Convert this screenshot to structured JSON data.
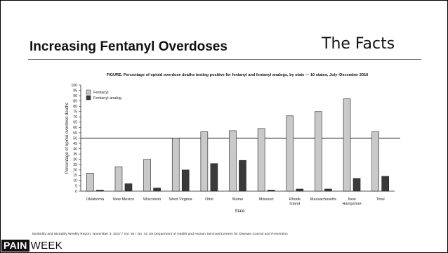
{
  "slide": {
    "title": "Increasing Fentanyl Overdoses",
    "subtitle": "The Facts",
    "caption": "Morbidity and Mortality Weekly Report. November 3, 2017 / Vol. 66 / No. 43 US Department of Health and Human Services/Centers for Disease Control and Prevention",
    "logo_pain": "PAIN",
    "logo_week": "WEEK"
  },
  "colors": {
    "fentanyl": "#c9c9c9",
    "fentanyl_analog": "#3a3a3a",
    "axis": "#222222"
  },
  "chart_data": {
    "type": "bar",
    "title": "FIGURE. Percentage of opioid overdose deaths testing positive for fentanyl and fentanyl analogs, by state — 10 states, July–December 2016",
    "xlabel": "State",
    "ylabel": "Percentage of opioid overdose deaths",
    "ylim": [
      0,
      100
    ],
    "yticks": [
      0,
      5,
      10,
      15,
      20,
      25,
      30,
      35,
      40,
      45,
      50,
      55,
      60,
      65,
      70,
      75,
      80,
      85,
      90,
      95,
      100
    ],
    "reference_line": 50,
    "legend_position": "top-left",
    "categories": [
      "Oklahoma",
      "New Mexico",
      "Wisconsin",
      "West Virginia",
      "Ohio",
      "Maine",
      "Missouri",
      "Rhode Island",
      "Massachusetts",
      "New Hampshire",
      "Total"
    ],
    "series": [
      {
        "name": "Fentanyl",
        "values": [
          17,
          23,
          30,
          50,
          56,
          57,
          59,
          71,
          75,
          87,
          56
        ]
      },
      {
        "name": "Fentanyl analog",
        "values": [
          1,
          7,
          3,
          20,
          26,
          29,
          1,
          2,
          2,
          12,
          14
        ]
      }
    ]
  }
}
